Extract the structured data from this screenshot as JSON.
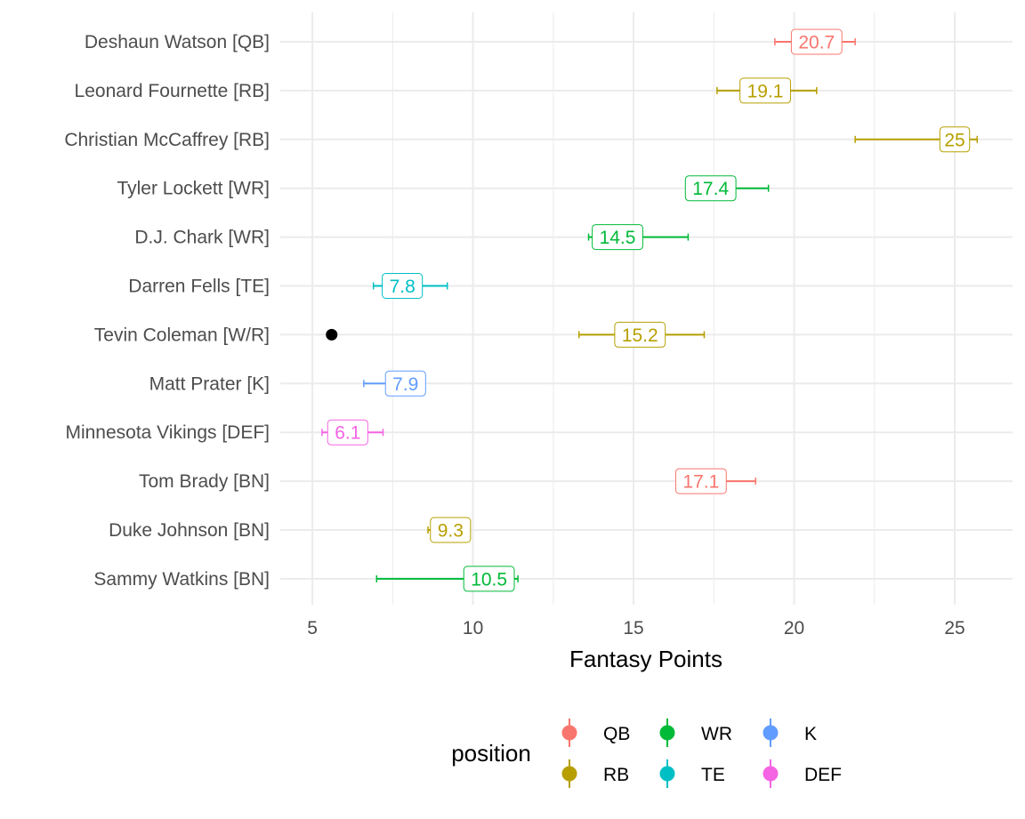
{
  "chart_data": {
    "type": "scatter",
    "title": "",
    "xlabel": "Fantasy Points",
    "ylabel": "",
    "xlim": [
      4.0,
      26.8
    ],
    "xticks": [
      5,
      10,
      15,
      20,
      25
    ],
    "xtick_labels": [
      "5",
      "10",
      "15",
      "20",
      "25"
    ],
    "grid": true,
    "legend_position": "bottom",
    "legend_title": "position",
    "legend": [
      {
        "key": "QB",
        "label": "QB",
        "color": "#F8766D"
      },
      {
        "key": "WR",
        "label": "WR",
        "color": "#00BA38"
      },
      {
        "key": "K",
        "label": "K",
        "color": "#619CFF"
      },
      {
        "key": "RB",
        "label": "RB",
        "color": "#B79F00"
      },
      {
        "key": "TE",
        "label": "TE",
        "color": "#00BFC4"
      },
      {
        "key": "DEF",
        "label": "DEF",
        "color": "#F564E3"
      }
    ],
    "players": [
      {
        "label": "Deshaun Watson [QB]",
        "position": "QB",
        "value": 20.7,
        "value_label": "20.7",
        "low": 19.4,
        "high": 21.9
      },
      {
        "label": "Leonard Fournette [RB]",
        "position": "RB",
        "value": 19.1,
        "value_label": "19.1",
        "low": 17.6,
        "high": 20.7
      },
      {
        "label": "Christian McCaffrey [RB]",
        "position": "RB",
        "value": 25.0,
        "value_label": "25",
        "low": 21.9,
        "high": 25.7
      },
      {
        "label": "Tyler Lockett [WR]",
        "position": "WR",
        "value": 17.4,
        "value_label": "17.4",
        "low": 16.8,
        "high": 19.2
      },
      {
        "label": "D.J. Chark [WR]",
        "position": "WR",
        "value": 14.5,
        "value_label": "14.5",
        "low": 13.6,
        "high": 16.7
      },
      {
        "label": "Darren Fells [TE]",
        "position": "TE",
        "value": 7.8,
        "value_label": "7.8",
        "low": 6.9,
        "high": 9.2
      },
      {
        "label": "Tevin Coleman [W/R]",
        "position": "RB",
        "value": 15.2,
        "value_label": "15.2",
        "low": 13.3,
        "high": 17.2,
        "extra_point": 5.6
      },
      {
        "label": "Matt Prater [K]",
        "position": "K",
        "value": 7.9,
        "value_label": "7.9",
        "low": 6.6,
        "high": 8.2
      },
      {
        "label": "Minnesota Vikings [DEF]",
        "position": "DEF",
        "value": 6.1,
        "value_label": "6.1",
        "low": 5.3,
        "high": 7.2
      },
      {
        "label": "Tom Brady [BN]",
        "position": "QB",
        "value": 17.1,
        "value_label": "17.1",
        "low": 16.6,
        "high": 18.8
      },
      {
        "label": "Duke Johnson [BN]",
        "position": "RB",
        "value": 9.3,
        "value_label": "9.3",
        "low": 8.6,
        "high": 9.9
      },
      {
        "label": "Sammy Watkins [BN]",
        "position": "WR",
        "value": 10.5,
        "value_label": "10.5",
        "low": 7.0,
        "high": 11.4
      }
    ],
    "extra_point_color": "#000000"
  }
}
